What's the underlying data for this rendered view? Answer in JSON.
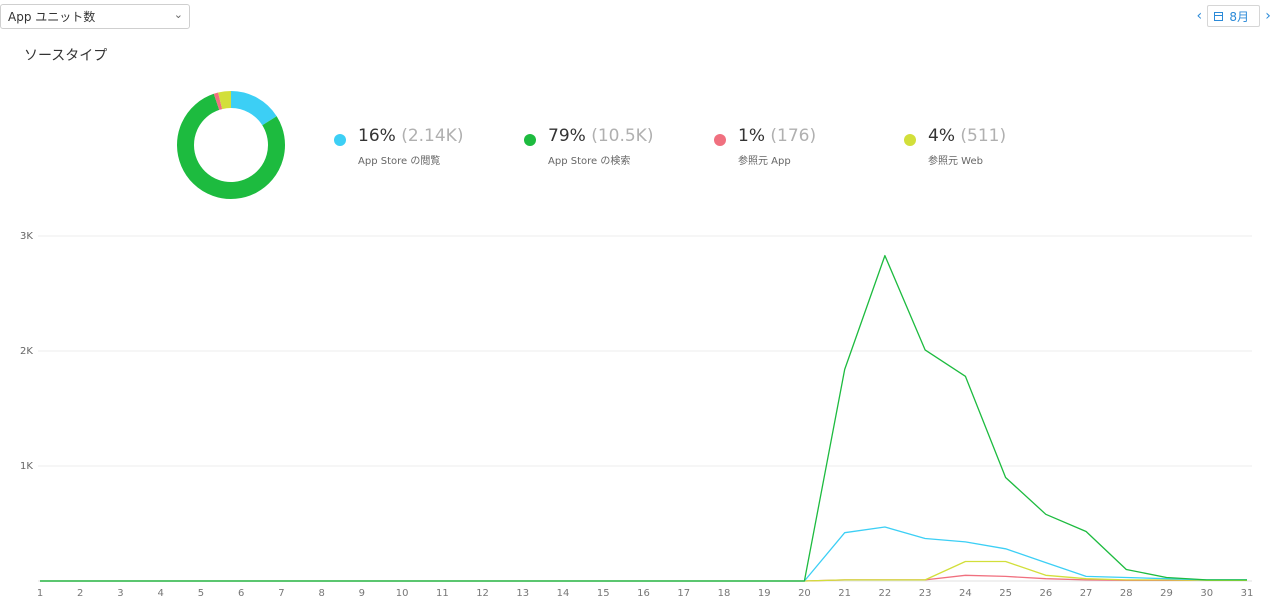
{
  "toolbar": {
    "metric_label": "App ユニット数",
    "month_label": "8月"
  },
  "section": {
    "title": "ソースタイプ"
  },
  "legend": [
    {
      "pct": "16%",
      "count": "(2.14K)",
      "name": "App Store の閲覧",
      "color": "#3ccff5"
    },
    {
      "pct": "79%",
      "count": "(10.5K)",
      "name": "App Store の検索",
      "color": "#1dbb3f"
    },
    {
      "pct": "1%",
      "count": "(176)",
      "name": "参照元 App",
      "color": "#f0707f"
    },
    {
      "pct": "4%",
      "count": "(511)",
      "name": "参照元 Web",
      "color": "#d2df3a"
    }
  ],
  "chart_data": [
    {
      "type": "pie",
      "categories": [
        "App Store の閲覧",
        "App Store の検索",
        "参照元 App",
        "参照元 Web"
      ],
      "values": [
        2140,
        10500,
        176,
        511
      ],
      "colors": [
        "#3ccff5",
        "#1dbb3f",
        "#f0707f",
        "#d2df3a"
      ]
    },
    {
      "type": "line",
      "x": [
        1,
        2,
        3,
        4,
        5,
        6,
        7,
        8,
        9,
        10,
        11,
        12,
        13,
        14,
        15,
        16,
        17,
        18,
        19,
        20,
        21,
        22,
        23,
        24,
        25,
        26,
        27,
        28,
        29,
        30,
        31
      ],
      "y_tick_labels": [
        "1K",
        "2K",
        "3K"
      ],
      "ylim": [
        0,
        3000
      ],
      "grid": true,
      "series": [
        {
          "name": "App Store の検索",
          "color": "#1dbb3f",
          "values": [
            0,
            0,
            0,
            0,
            0,
            0,
            0,
            0,
            0,
            0,
            0,
            0,
            0,
            0,
            0,
            0,
            0,
            0,
            0,
            0,
            1840,
            2830,
            2010,
            1780,
            900,
            580,
            430,
            100,
            30,
            10,
            10
          ]
        },
        {
          "name": "App Store の閲覧",
          "color": "#3ccff5",
          "values": [
            0,
            0,
            0,
            0,
            0,
            0,
            0,
            0,
            0,
            0,
            0,
            0,
            0,
            0,
            0,
            0,
            0,
            0,
            0,
            0,
            420,
            470,
            370,
            340,
            280,
            160,
            40,
            30,
            20,
            10,
            10
          ]
        },
        {
          "name": "参照元 Web",
          "color": "#d2df3a",
          "values": [
            0,
            0,
            0,
            0,
            0,
            0,
            0,
            0,
            0,
            0,
            0,
            0,
            0,
            0,
            0,
            0,
            0,
            0,
            0,
            0,
            10,
            10,
            10,
            170,
            170,
            50,
            20,
            10,
            10,
            5,
            5
          ]
        },
        {
          "name": "参照元 App",
          "color": "#f0707f",
          "values": [
            0,
            0,
            0,
            0,
            0,
            0,
            0,
            0,
            0,
            0,
            0,
            0,
            0,
            0,
            0,
            0,
            0,
            0,
            0,
            0,
            10,
            10,
            10,
            50,
            40,
            20,
            10,
            5,
            5,
            5,
            5
          ]
        }
      ]
    }
  ]
}
